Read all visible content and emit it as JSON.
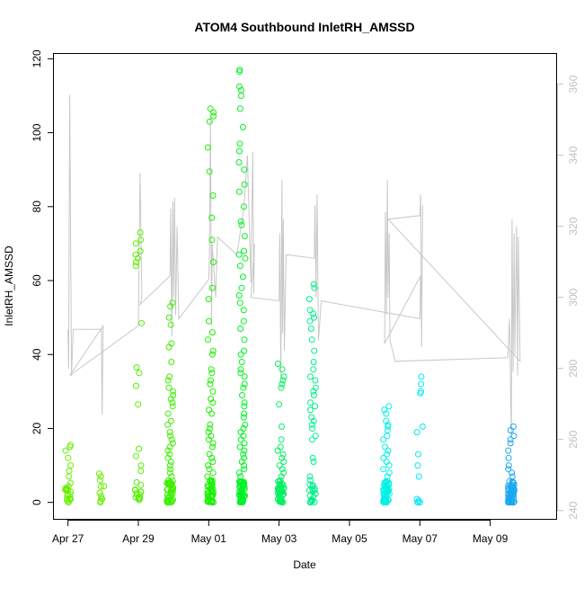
{
  "chart_data": {
    "type": "scatter",
    "title": "ATOM4 Southbound InletRH_AMSSD",
    "xlabel": "Date",
    "ylabel": "InletRH_AMSSD",
    "x_domain_days": [
      -0.4,
      13.9
    ],
    "x_ticks": [
      {
        "day": 0,
        "label": "Apr 27"
      },
      {
        "day": 2,
        "label": "Apr 29"
      },
      {
        "day": 4,
        "label": "May 01"
      },
      {
        "day": 6,
        "label": "May 03"
      },
      {
        "day": 8,
        "label": "May 05"
      },
      {
        "day": 10,
        "label": "May 07"
      },
      {
        "day": 12,
        "label": "May 09"
      }
    ],
    "ylim": [
      -4.7,
      121.3
    ],
    "y_ticks": [
      0,
      20,
      40,
      60,
      80,
      100,
      120
    ],
    "y2_label": "",
    "y2lim": [
      237.4,
      368.5
    ],
    "y2_ticks": [
      240,
      260,
      280,
      300,
      320,
      340,
      360
    ],
    "series": [
      {
        "name": "InletRH_AMSSD",
        "marker": "open-circle",
        "clusters": [
          {
            "day": 0.0,
            "color": "#66f000",
            "high": [
              15.5,
              15,
              14,
              12,
              10,
              8.5,
              7
            ],
            "max_low": 6,
            "n_low": 20
          },
          {
            "day": 0.95,
            "color": "#66f000",
            "high": [
              7.8,
              7,
              6
            ],
            "max_low": 5,
            "n_low": 8
          },
          {
            "day": 2.0,
            "color": "#58f000",
            "high": [
              73,
              71,
              70,
              68,
              67,
              66,
              65,
              64,
              48.5,
              36.5,
              35,
              31.5,
              26.5,
              14.5,
              12.5,
              10,
              8.5
            ],
            "max_low": 6,
            "n_low": 14
          },
          {
            "day": 2.9,
            "color": "#3cf000",
            "high": [
              54,
              53,
              50,
              48,
              43,
              42,
              38,
              34,
              33,
              31,
              30,
              29,
              28,
              27,
              26,
              24,
              22,
              21,
              19,
              18,
              17,
              16,
              15,
              14,
              13,
              12,
              11,
              10,
              9,
              8,
              7
            ],
            "max_low": 6,
            "n_low": 45
          },
          {
            "day": 4.05,
            "color": "#1af200",
            "high": [
              106.5,
              105.5,
              104.5,
              103,
              96,
              89.5,
              83,
              77,
              71,
              65,
              58,
              55,
              49,
              46,
              44,
              41,
              40,
              36,
              35,
              33,
              32,
              30,
              28,
              27,
              25,
              24,
              21,
              20,
              19,
              18,
              17,
              16,
              15,
              13,
              12,
              11,
              10,
              9,
              8,
              7
            ],
            "max_low": 6,
            "n_low": 45
          },
          {
            "day": 4.95,
            "color": "#00f224",
            "high": [
              117,
              116.5,
              112.5,
              111.5,
              110,
              106.5,
              101.5,
              97,
              95,
              92,
              90,
              86,
              84,
              80,
              76,
              75,
              72,
              68,
              67,
              66,
              64,
              61,
              58,
              56,
              54,
              52,
              49,
              47,
              44,
              41,
              40,
              38,
              36,
              35,
              34,
              32,
              31,
              29,
              27,
              26,
              24,
              23,
              21,
              20,
              19,
              18,
              17,
              16,
              15,
              14,
              13,
              12,
              11,
              10,
              9,
              8,
              7
            ],
            "max_low": 6,
            "n_low": 55
          },
          {
            "day": 6.05,
            "color": "#00f060",
            "high": [
              37.5,
              36,
              34,
              33,
              32,
              31,
              26.5,
              20.5,
              17,
              15,
              14,
              13,
              12,
              11,
              10,
              9,
              8,
              7
            ],
            "max_low": 6,
            "n_low": 40
          },
          {
            "day": 6.95,
            "color": "#00f08a",
            "high": [
              59,
              58,
              55,
              52,
              51,
              50,
              49,
              47,
              44,
              41,
              38,
              36,
              34,
              33,
              31,
              30,
              29,
              27,
              26,
              25,
              23,
              22,
              21,
              20,
              18,
              17,
              12,
              11,
              7,
              6
            ],
            "max_low": 5,
            "n_low": 18
          },
          {
            "day": 9.05,
            "color": "#00f2e6",
            "high": [
              26,
              25,
              24,
              22,
              21,
              20.5,
              19.5,
              18,
              17,
              15,
              14,
              13,
              12,
              11,
              10,
              9,
              8,
              7
            ],
            "max_low": 6,
            "n_low": 45
          },
          {
            "day": 10.0,
            "color": "#00e8f0",
            "high": [
              34,
              32,
              30,
              29.5,
              20.5,
              19,
              13,
              10,
              7
            ],
            "max_low": 1,
            "n_low": 5
          },
          {
            "day": 12.6,
            "color": "#1aa8f0",
            "high": [
              20.5,
              19.5,
              18,
              17,
              16,
              14,
              12,
              10,
              9,
              8,
              7
            ],
            "max_low": 6,
            "n_low": 50
          }
        ]
      },
      {
        "name": "secondary (right axis)",
        "color": "#c8c8c8",
        "polyline": [
          [
            0.0,
            291
          ],
          [
            0.02,
            280
          ],
          [
            0.05,
            357
          ],
          [
            0.1,
            278
          ],
          [
            0.15,
            291
          ],
          [
            0.95,
            291
          ],
          [
            0.95,
            285
          ],
          [
            0.97,
            267
          ],
          [
            1.0,
            292
          ],
          [
            0.05,
            278
          ],
          [
            2.0,
            292
          ],
          [
            2.05,
            335
          ],
          [
            2.1,
            300
          ],
          [
            2.05,
            298
          ],
          [
            2.9,
            306
          ],
          [
            2.92,
            325
          ],
          [
            2.95,
            289
          ],
          [
            2.98,
            327
          ],
          [
            3.0,
            300
          ],
          [
            3.03,
            328
          ],
          [
            3.06,
            295
          ],
          [
            3.1,
            320
          ],
          [
            3.15,
            294
          ],
          [
            4.0,
            305
          ],
          [
            4.02,
            312
          ],
          [
            4.05,
            351
          ],
          [
            4.08,
            292
          ],
          [
            4.1,
            315
          ],
          [
            4.2,
            300
          ],
          [
            4.25,
            317
          ],
          [
            4.8,
            312
          ],
          [
            5.0,
            325
          ],
          [
            5.1,
            340
          ],
          [
            5.2,
            304
          ],
          [
            5.25,
            341
          ],
          [
            5.28,
            301
          ],
          [
            5.3,
            315
          ],
          [
            5.2,
            300
          ],
          [
            6.0,
            299
          ],
          [
            6.02,
            318
          ],
          [
            6.05,
            277
          ],
          [
            6.08,
            333
          ],
          [
            6.1,
            290
          ],
          [
            6.12,
            322
          ],
          [
            6.15,
            285
          ],
          [
            6.2,
            312
          ],
          [
            7.0,
            311
          ],
          [
            7.02,
            326
          ],
          [
            7.05,
            300
          ],
          [
            7.08,
            329
          ],
          [
            7.12,
            288
          ],
          [
            7.2,
            299
          ],
          [
            10.0,
            294
          ],
          [
            10.02,
            306
          ],
          [
            9.0,
            287
          ],
          [
            9.02,
            324
          ],
          [
            9.05,
            295
          ],
          [
            9.08,
            333
          ],
          [
            9.1,
            300
          ],
          [
            9.13,
            318
          ],
          [
            9.15,
            288
          ],
          [
            9.3,
            282
          ],
          [
            12.5,
            283
          ],
          [
            12.55,
            294
          ],
          [
            12.6,
            260
          ],
          [
            12.62,
            322
          ],
          [
            12.65,
            279
          ],
          [
            12.68,
            318
          ],
          [
            12.7,
            284
          ],
          [
            12.75,
            320
          ],
          [
            12.78,
            278
          ],
          [
            12.8,
            317
          ],
          [
            12.85,
            282
          ],
          [
            9.1,
            322
          ],
          [
            10.0,
            323
          ],
          [
            10.02,
            329
          ],
          [
            10.05,
            286
          ],
          [
            10.08,
            326
          ]
        ]
      }
    ]
  }
}
